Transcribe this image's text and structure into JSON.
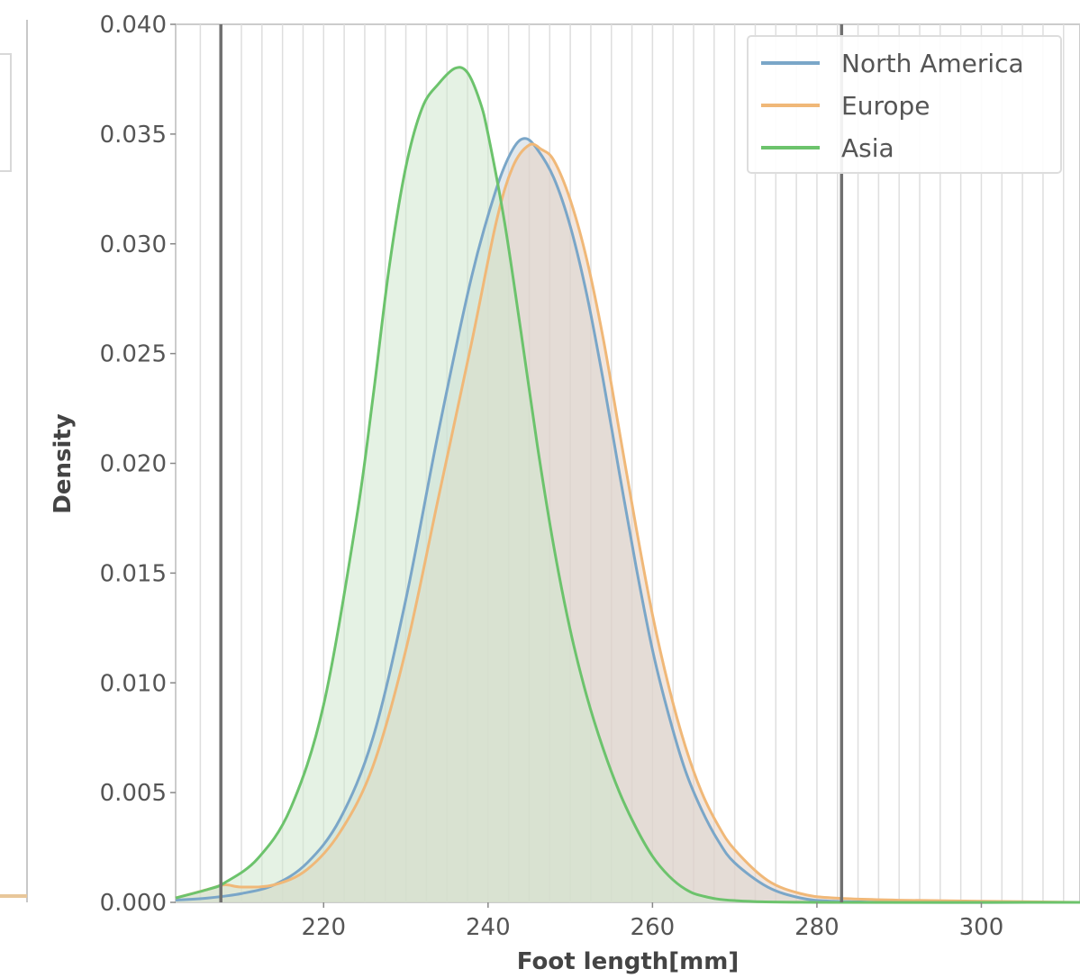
{
  "chart_data": {
    "type": "area",
    "xlabel": "Foot length[mm]",
    "ylabel": "Density",
    "xlim": [
      202,
      312
    ],
    "ylim": [
      0,
      0.04
    ],
    "x_ticks": [
      220,
      240,
      260,
      280,
      300
    ],
    "y_ticks": [
      "0.000",
      "0.005",
      "0.010",
      "0.015",
      "0.020",
      "0.025",
      "0.030",
      "0.035",
      "0.040"
    ],
    "grid": "vertical lines every 2.5 mm",
    "reference_lines_x": [
      207.5,
      283
    ],
    "legend_position": "top-right",
    "series": [
      {
        "name": "North America",
        "color": "#7aa6c8",
        "fill": "#c9d6de",
        "points": [
          [
            202,
            0.0001
          ],
          [
            206,
            0.0002
          ],
          [
            210,
            0.0004
          ],
          [
            214,
            0.0008
          ],
          [
            218,
            0.0018
          ],
          [
            222,
            0.0038
          ],
          [
            226,
            0.0075
          ],
          [
            230,
            0.0138
          ],
          [
            234,
            0.0215
          ],
          [
            238,
            0.0285
          ],
          [
            241,
            0.0325
          ],
          [
            243,
            0.0343
          ],
          [
            244.5,
            0.0348
          ],
          [
            246,
            0.0343
          ],
          [
            248,
            0.033
          ],
          [
            250,
            0.0308
          ],
          [
            252,
            0.0277
          ],
          [
            254,
            0.0238
          ],
          [
            256,
            0.0195
          ],
          [
            258,
            0.0153
          ],
          [
            260,
            0.0115
          ],
          [
            262,
            0.0085
          ],
          [
            264,
            0.006
          ],
          [
            266,
            0.0042
          ],
          [
            268,
            0.0028
          ],
          [
            270,
            0.0018
          ],
          [
            274,
            0.0007
          ],
          [
            278,
            0.0002
          ],
          [
            282,
            5e-05
          ],
          [
            290,
            0.0
          ],
          [
            312,
            0.0
          ]
        ]
      },
      {
        "name": "Europe",
        "color": "#f0b878",
        "fill": "#e8d2c2",
        "points": [
          [
            202,
            0.0002
          ],
          [
            206,
            0.0006
          ],
          [
            208,
            0.0008
          ],
          [
            210,
            0.0007
          ],
          [
            214,
            0.0008
          ],
          [
            218,
            0.0015
          ],
          [
            222,
            0.0032
          ],
          [
            226,
            0.0062
          ],
          [
            230,
            0.0115
          ],
          [
            234,
            0.0185
          ],
          [
            238,
            0.0255
          ],
          [
            241,
            0.031
          ],
          [
            243,
            0.0335
          ],
          [
            245,
            0.0345
          ],
          [
            246.5,
            0.0343
          ],
          [
            248,
            0.0338
          ],
          [
            250,
            0.032
          ],
          [
            252,
            0.0293
          ],
          [
            254,
            0.0257
          ],
          [
            256,
            0.0214
          ],
          [
            258,
            0.0171
          ],
          [
            260,
            0.0131
          ],
          [
            262,
            0.0098
          ],
          [
            264,
            0.0071
          ],
          [
            266,
            0.005
          ],
          [
            268,
            0.0035
          ],
          [
            270,
            0.0024
          ],
          [
            274,
            0.001
          ],
          [
            278,
            0.0004
          ],
          [
            282,
            0.0002
          ],
          [
            290,
            0.0001
          ],
          [
            300,
            5e-05
          ],
          [
            312,
            0.0
          ]
        ]
      },
      {
        "name": "Asia",
        "color": "#6cc36c",
        "fill": "#cfe8cd",
        "points": [
          [
            202,
            0.0002
          ],
          [
            206,
            0.0006
          ],
          [
            208,
            0.0009
          ],
          [
            212,
            0.002
          ],
          [
            216,
            0.0043
          ],
          [
            220,
            0.009
          ],
          [
            224,
            0.0175
          ],
          [
            226,
            0.023
          ],
          [
            228,
            0.029
          ],
          [
            230,
            0.0335
          ],
          [
            232,
            0.0362
          ],
          [
            234,
            0.0373
          ],
          [
            236,
            0.038
          ],
          [
            237.5,
            0.0378
          ],
          [
            239,
            0.0365
          ],
          [
            240,
            0.035
          ],
          [
            242,
            0.031
          ],
          [
            244,
            0.026
          ],
          [
            246,
            0.0208
          ],
          [
            248,
            0.0162
          ],
          [
            250,
            0.0124
          ],
          [
            252,
            0.0094
          ],
          [
            254,
            0.007
          ],
          [
            256,
            0.005
          ],
          [
            258,
            0.0034
          ],
          [
            260,
            0.0021
          ],
          [
            262,
            0.0012
          ],
          [
            264,
            0.0006
          ],
          [
            266,
            0.0003
          ],
          [
            270,
            8e-05
          ],
          [
            280,
            0.0
          ],
          [
            312,
            0.0
          ]
        ]
      }
    ]
  }
}
